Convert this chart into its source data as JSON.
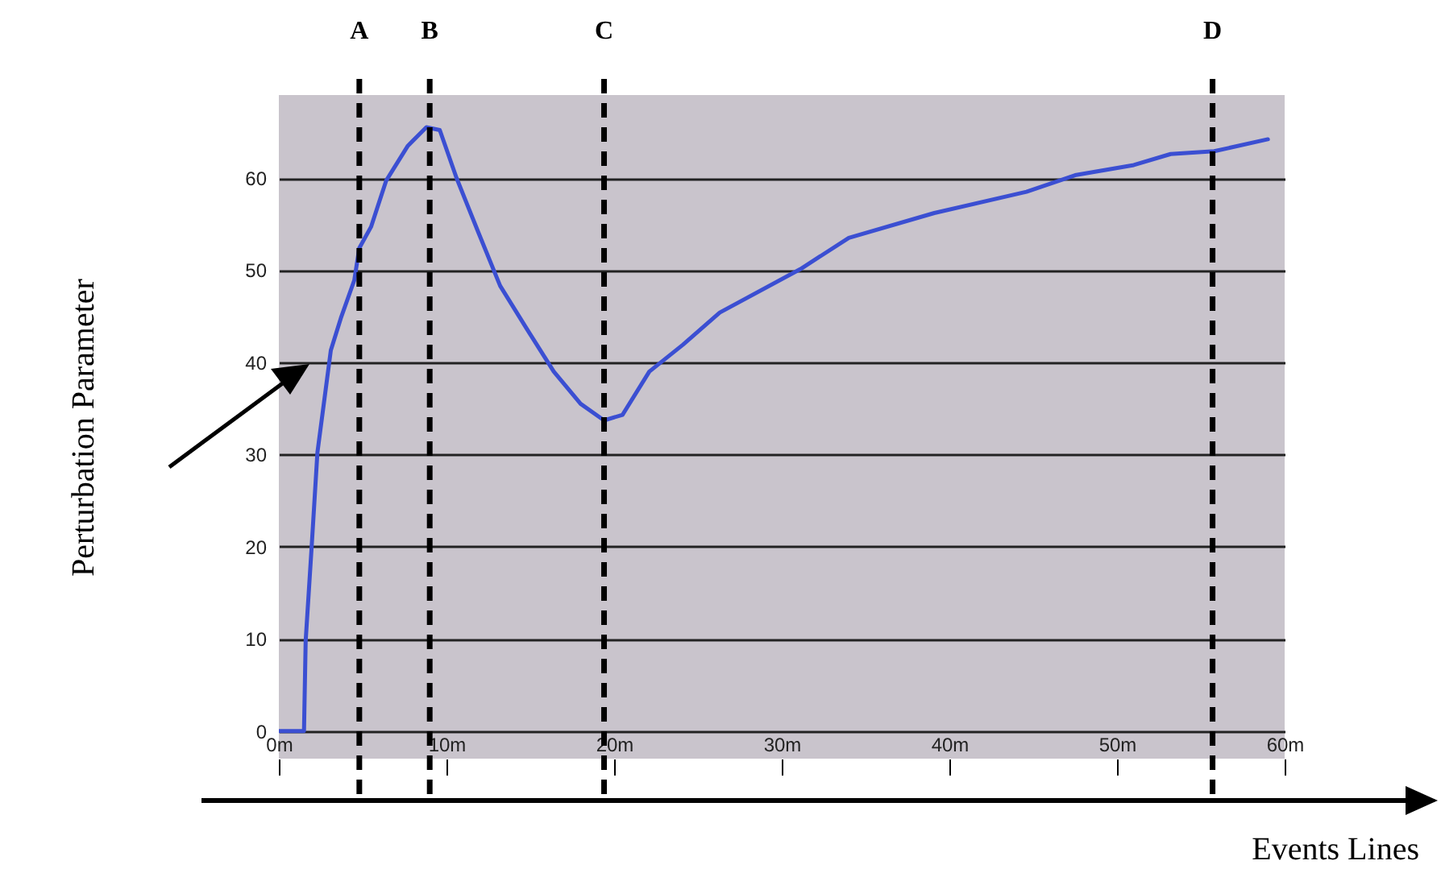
{
  "chart_data": {
    "type": "line",
    "xlabel": "Events Lines",
    "ylabel": "Perturbation Parameter",
    "x": [
      0,
      1.5,
      1.6,
      1.95,
      2.3,
      3.1,
      3.7,
      4.5,
      4.8,
      5.5,
      6.4,
      7.7,
      8.8,
      9.6,
      10.6,
      11.9,
      13.2,
      14.8,
      16.4,
      18,
      19.4,
      20.5,
      22.1,
      24.1,
      26.3,
      31.1,
      34,
      39.1,
      44.6,
      47.5,
      51,
      53.2,
      55.8,
      59
    ],
    "series": [
      {
        "color": "#3b4fd2",
        "values": [
          0,
          0,
          9.8,
          19.8,
          30.2,
          41.3,
          44.8,
          48.9,
          52.4,
          54.7,
          59.7,
          63.5,
          65.5,
          65.2,
          60,
          54.1,
          48.3,
          43.6,
          39,
          35.5,
          33.7,
          34.3,
          39,
          41.9,
          45.4,
          50.1,
          53.5,
          56.2,
          58.5,
          60.3,
          61.4,
          62.6,
          62.9,
          64.2
        ]
      }
    ],
    "xlim": [
      0,
      60
    ],
    "ylim": [
      -3,
      69
    ],
    "xticks": [
      {
        "value": 0,
        "label": "0m"
      },
      {
        "value": 10,
        "label": "10m"
      },
      {
        "value": 20,
        "label": "20m"
      },
      {
        "value": 30,
        "label": "30m"
      },
      {
        "value": 40,
        "label": "40m"
      },
      {
        "value": 50,
        "label": "50m"
      },
      {
        "value": 60,
        "label": "60m"
      }
    ],
    "yticks": [
      0,
      10,
      20,
      30,
      40,
      50,
      60
    ],
    "grid": "y",
    "ref_lines": [
      {
        "axis": "x",
        "value": 4.8,
        "label": "A",
        "color": "#000000",
        "line_style": "dashed"
      },
      {
        "axis": "x",
        "value": 9.0,
        "label": "B",
        "color": "#000000",
        "line_style": "dashed"
      },
      {
        "axis": "x",
        "value": 19.4,
        "label": "C",
        "color": "#000000",
        "line_style": "dashed"
      },
      {
        "axis": "x",
        "value": 55.7,
        "label": "D",
        "color": "#000000",
        "line_style": "dashed"
      }
    ]
  }
}
